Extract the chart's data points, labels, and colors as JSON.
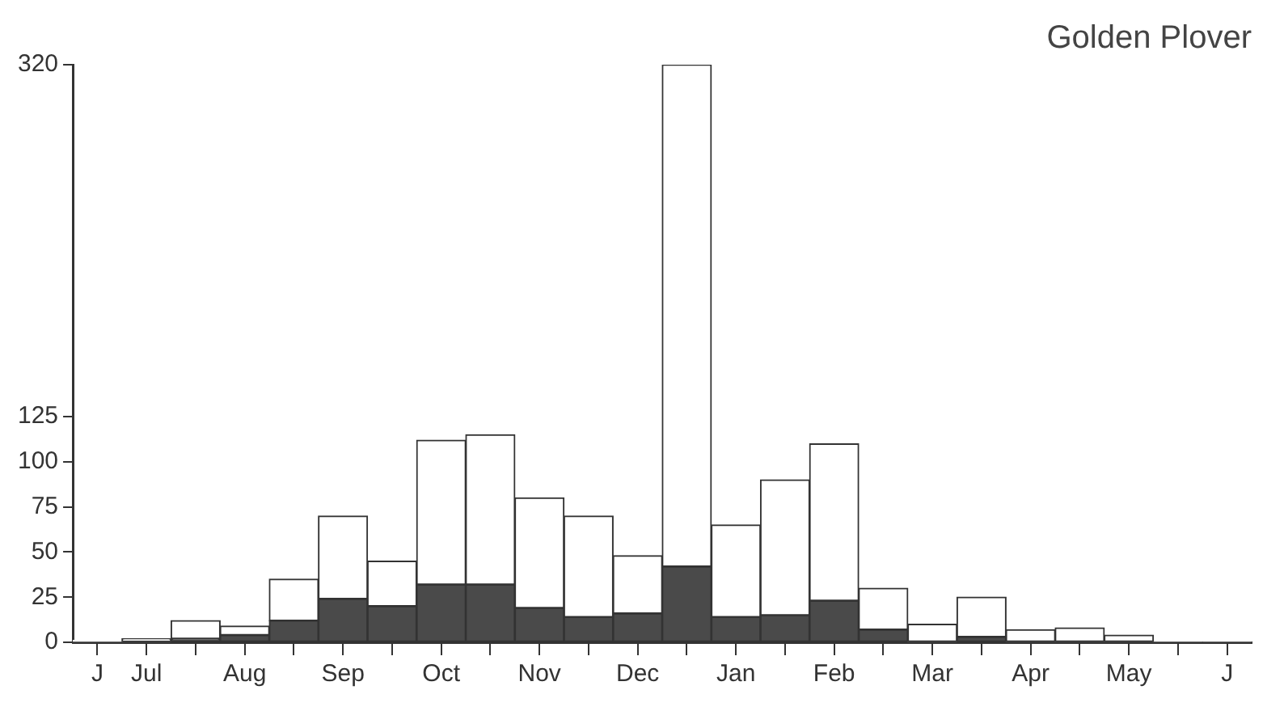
{
  "chart_data": {
    "type": "bar",
    "title": "Golden Plover",
    "stacked": true,
    "categories": [
      "J",
      "Jul",
      null,
      "Aug",
      null,
      "Sep",
      null,
      "Oct",
      null,
      "Nov",
      null,
      "Dec",
      null,
      "Jan",
      null,
      "Feb",
      null,
      "Mar",
      null,
      "Apr",
      null,
      "May",
      null,
      "J"
    ],
    "series": [
      {
        "color": "#4a4a4a",
        "values": [
          0,
          0,
          2,
          4,
          12,
          24,
          20,
          32,
          32,
          19,
          14,
          16,
          42,
          14,
          15,
          23,
          7,
          0,
          3,
          0,
          0,
          0,
          0,
          0
        ]
      },
      {
        "color": "#ffffff",
        "values": [
          1,
          2,
          10,
          5,
          23,
          46,
          25,
          80,
          83,
          61,
          56,
          32,
          278,
          51,
          75,
          87,
          23,
          10,
          22,
          7,
          8,
          4,
          0,
          0
        ]
      }
    ],
    "ylim": [
      0,
      320
    ],
    "yticks": [
      0,
      25,
      50,
      75,
      100,
      125,
      320
    ],
    "grid": false,
    "legend": false
  }
}
